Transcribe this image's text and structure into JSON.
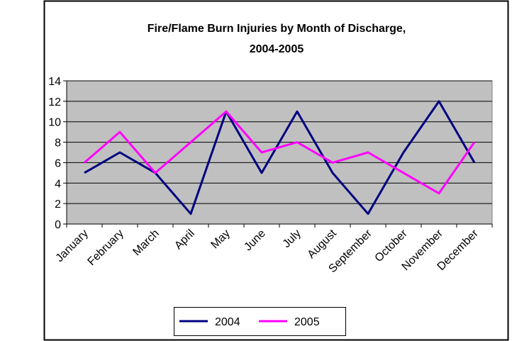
{
  "chart_data": {
    "type": "line",
    "title": [
      "Fire/Flame Burn Injuries by Month of Discharge,",
      "2004-2005"
    ],
    "categories": [
      "January",
      "February",
      "March",
      "April",
      "May",
      "June",
      "July",
      "August",
      "September",
      "October",
      "November",
      "December"
    ],
    "series": [
      {
        "name": "2004",
        "color": "#000080",
        "values": [
          5,
          7,
          5,
          1,
          11,
          5,
          11,
          5,
          1,
          7,
          12,
          6
        ]
      },
      {
        "name": "2005",
        "color": "#ff00ff",
        "values": [
          6,
          9,
          5,
          8,
          11,
          7,
          8,
          6,
          7,
          5,
          3,
          8
        ]
      }
    ],
    "ylim": [
      0,
      14
    ],
    "yticks": [
      0,
      2,
      4,
      6,
      8,
      10,
      12,
      14
    ],
    "grid": true,
    "legend": "bottom"
  }
}
